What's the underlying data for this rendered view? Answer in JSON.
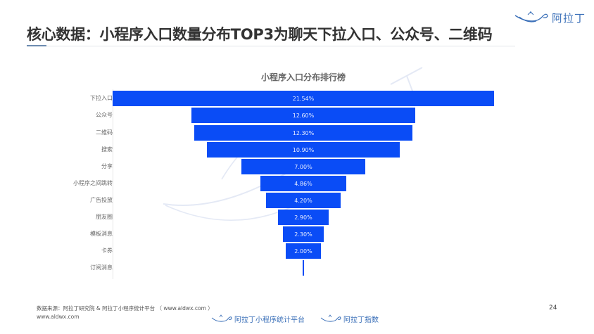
{
  "brand": {
    "name": "阿拉丁",
    "icon": "magic-lamp-icon",
    "color": "#3a6fb8"
  },
  "page": {
    "title": "核心数据：小程序入口数量分布TOP3为聊天下拉入口、公众号、二维码",
    "number": "24"
  },
  "chart_data": {
    "type": "bar",
    "orientation": "horizontal-centered-funnel",
    "title": "小程序入口分布排行榜",
    "categories": [
      "下拉入口",
      "公众号",
      "二维码",
      "搜索",
      "分享",
      "小程序之间跳转",
      "广告投放",
      "朋友圈",
      "模板消息",
      "卡券",
      "订阅消息"
    ],
    "values": [
      21.54,
      12.6,
      12.3,
      10.9,
      7.0,
      4.86,
      4.2,
      2.9,
      2.3,
      2.0,
      0.1
    ],
    "labels": [
      "21.54%",
      "12.60%",
      "12.30%",
      "10.90%",
      "7.00%",
      "4.86%",
      "4.20%",
      "2.90%",
      "2.30%",
      "2.00%",
      ""
    ],
    "unit": "%",
    "xlabel": "",
    "ylabel": "",
    "grid": false,
    "legend": null,
    "bar_color": "#0a4cf6"
  },
  "footer": {
    "source": "数据来源：阿拉丁研究院 & 阿拉丁小程序统计平台 （ www.aldwx.com ）",
    "url": "www.aldwx.com",
    "logos": [
      {
        "label": "阿拉丁小程序统计平台",
        "icon": "magic-lamp-icon"
      },
      {
        "label": "阿拉丁指数",
        "icon": "magic-lamp-icon"
      }
    ]
  }
}
